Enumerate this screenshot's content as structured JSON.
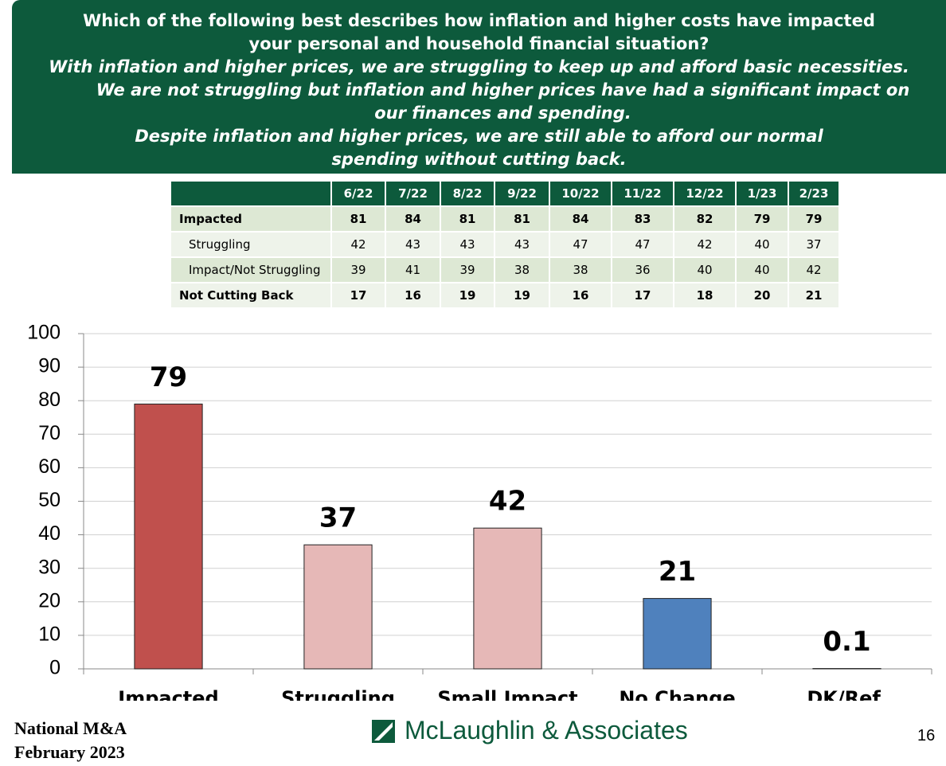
{
  "header": {
    "question": "Which of the following best describes how inflation and higher costs have impacted your personal and household financial situation?",
    "options": [
      "With inflation and higher prices, we are struggling to keep up and afford basic necessities.",
      "We are not struggling but inflation and higher prices have had a significant impact on our finances and spending.",
      "Despite inflation and higher prices, we are still able to afford our normal spending without cutting back."
    ]
  },
  "table": {
    "columns": [
      "6/22",
      "7/22",
      "8/22",
      "9/22",
      "10/22",
      "11/22",
      "12/22",
      "1/23",
      "2/23"
    ],
    "rows": [
      {
        "label": "Impacted",
        "values": [
          81,
          84,
          81,
          81,
          84,
          83,
          82,
          79,
          79
        ]
      },
      {
        "label": "Struggling",
        "values": [
          42,
          43,
          43,
          43,
          47,
          47,
          42,
          40,
          37
        ]
      },
      {
        "label": "Impact/Not Struggling",
        "values": [
          39,
          41,
          39,
          38,
          38,
          36,
          40,
          40,
          42
        ]
      },
      {
        "label": "Not Cutting Back",
        "values": [
          17,
          16,
          19,
          19,
          16,
          17,
          18,
          20,
          21
        ]
      }
    ]
  },
  "chart_data": {
    "type": "bar",
    "categories": [
      "Impacted",
      "Struggling",
      "Small Impact",
      "No Change",
      "DK/Ref."
    ],
    "values": [
      79,
      37,
      42,
      21,
      0.1
    ],
    "colors": [
      "#c0504d",
      "#e6b8b7",
      "#e6b8b7",
      "#4f81bd",
      "#9a9a9a"
    ],
    "ylim": [
      0,
      100
    ],
    "yticks": [
      0,
      10,
      20,
      30,
      40,
      50,
      60,
      70,
      80,
      90,
      100
    ],
    "grid": true
  },
  "footer": {
    "org": "National M&A",
    "date": "February 2023",
    "company": "McLaughlin & Associates",
    "page": "16"
  }
}
